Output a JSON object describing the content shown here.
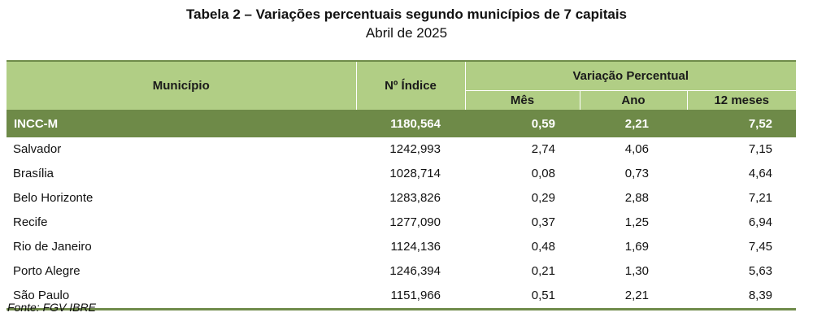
{
  "title": "Tabela 2 – Variações percentuais segundo municípios de 7 capitais",
  "subtitle": "Abril de 2025",
  "headers": {
    "municipio": "Município",
    "indice": "Nº Índice",
    "variacao": "Variação Percentual",
    "mes": "Mês",
    "ano": "Ano",
    "doze_meses": "12 meses"
  },
  "total": {
    "name": "INCC-M",
    "indice": "1180,564",
    "mes": "0,59",
    "ano": "2,21",
    "doze": "7,52"
  },
  "rows": [
    {
      "name": "Salvador",
      "indice": "1242,993",
      "mes": "2,74",
      "ano": "4,06",
      "doze": "7,15"
    },
    {
      "name": "Brasília",
      "indice": "1028,714",
      "mes": "0,08",
      "ano": "0,73",
      "doze": "4,64"
    },
    {
      "name": "Belo Horizonte",
      "indice": "1283,826",
      "mes": "0,29",
      "ano": "2,88",
      "doze": "7,21"
    },
    {
      "name": "Recife",
      "indice": "1277,090",
      "mes": "0,37",
      "ano": "1,25",
      "doze": "6,94"
    },
    {
      "name": "Rio de Janeiro",
      "indice": "1124,136",
      "mes": "0,48",
      "ano": "1,69",
      "doze": "7,45"
    },
    {
      "name": "Porto Alegre",
      "indice": "1246,394",
      "mes": "0,21",
      "ano": "1,30",
      "doze": "5,63"
    },
    {
      "name": "São Paulo",
      "indice": "1151,966",
      "mes": "0,51",
      "ano": "2,21",
      "doze": "8,39"
    }
  ],
  "source": "Fonte: FGV IBRE",
  "colors": {
    "header_bg": "#b1ce85",
    "total_bg": "#6e8a48",
    "rule": "#6f8b4a"
  }
}
